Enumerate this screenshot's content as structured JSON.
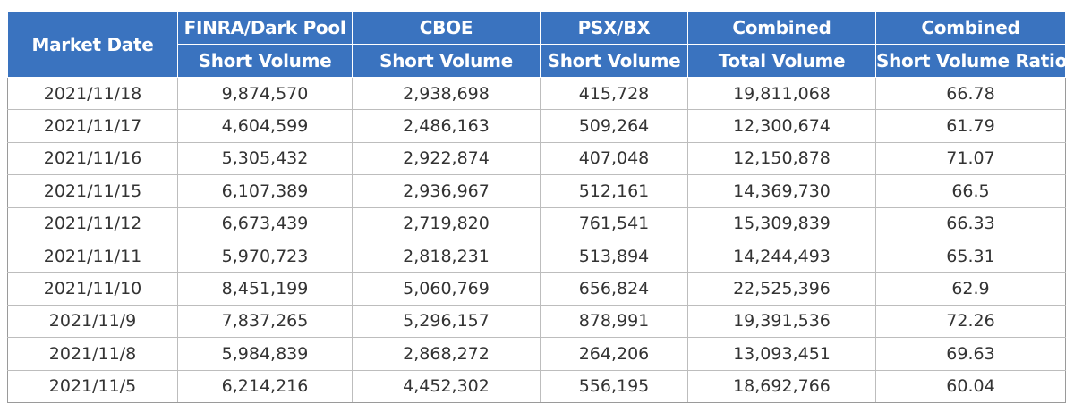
{
  "table": {
    "headers": {
      "market_date": "Market Date",
      "finra_top": "FINRA/Dark Pool",
      "finra_bottom": "Short Volume",
      "cboe_top": "CBOE",
      "cboe_bottom": "Short Volume",
      "psx_top": "PSX/BX",
      "psx_bottom": "Short Volume",
      "combined_top": "Combined",
      "combined_bottom": "Total Volume",
      "ratio_top": "Combined",
      "ratio_bottom": "Short Volume Ratio"
    },
    "rows": [
      {
        "date": "2021/11/18",
        "finra": "9,874,570",
        "cboe": "2,938,698",
        "psx": "415,728",
        "total": "19,811,068",
        "ratio": "66.78"
      },
      {
        "date": "2021/11/17",
        "finra": "4,604,599",
        "cboe": "2,486,163",
        "psx": "509,264",
        "total": "12,300,674",
        "ratio": "61.79"
      },
      {
        "date": "2021/11/16",
        "finra": "5,305,432",
        "cboe": "2,922,874",
        "psx": "407,048",
        "total": "12,150,878",
        "ratio": "71.07"
      },
      {
        "date": "2021/11/15",
        "finra": "6,107,389",
        "cboe": "2,936,967",
        "psx": "512,161",
        "total": "14,369,730",
        "ratio": "66.5"
      },
      {
        "date": "2021/11/12",
        "finra": "6,673,439",
        "cboe": "2,719,820",
        "psx": "761,541",
        "total": "15,309,839",
        "ratio": "66.33"
      },
      {
        "date": "2021/11/11",
        "finra": "5,970,723",
        "cboe": "2,818,231",
        "psx": "513,894",
        "total": "14,244,493",
        "ratio": "65.31"
      },
      {
        "date": "2021/11/10",
        "finra": "8,451,199",
        "cboe": "5,060,769",
        "psx": "656,824",
        "total": "22,525,396",
        "ratio": "62.9"
      },
      {
        "date": "2021/11/9",
        "finra": "7,837,265",
        "cboe": "5,296,157",
        "psx": "878,991",
        "total": "19,391,536",
        "ratio": "72.26"
      },
      {
        "date": "2021/11/8",
        "finra": "5,984,839",
        "cboe": "2,868,272",
        "psx": "264,206",
        "total": "13,093,451",
        "ratio": "69.63"
      },
      {
        "date": "2021/11/5",
        "finra": "6,214,216",
        "cboe": "4,452,302",
        "psx": "556,195",
        "total": "18,692,766",
        "ratio": "60.04"
      }
    ]
  },
  "colors": {
    "header_bg": "#3a73bf",
    "header_text": "#ffffff",
    "cell_text": "#333333",
    "grid": "#bdbdbd"
  }
}
